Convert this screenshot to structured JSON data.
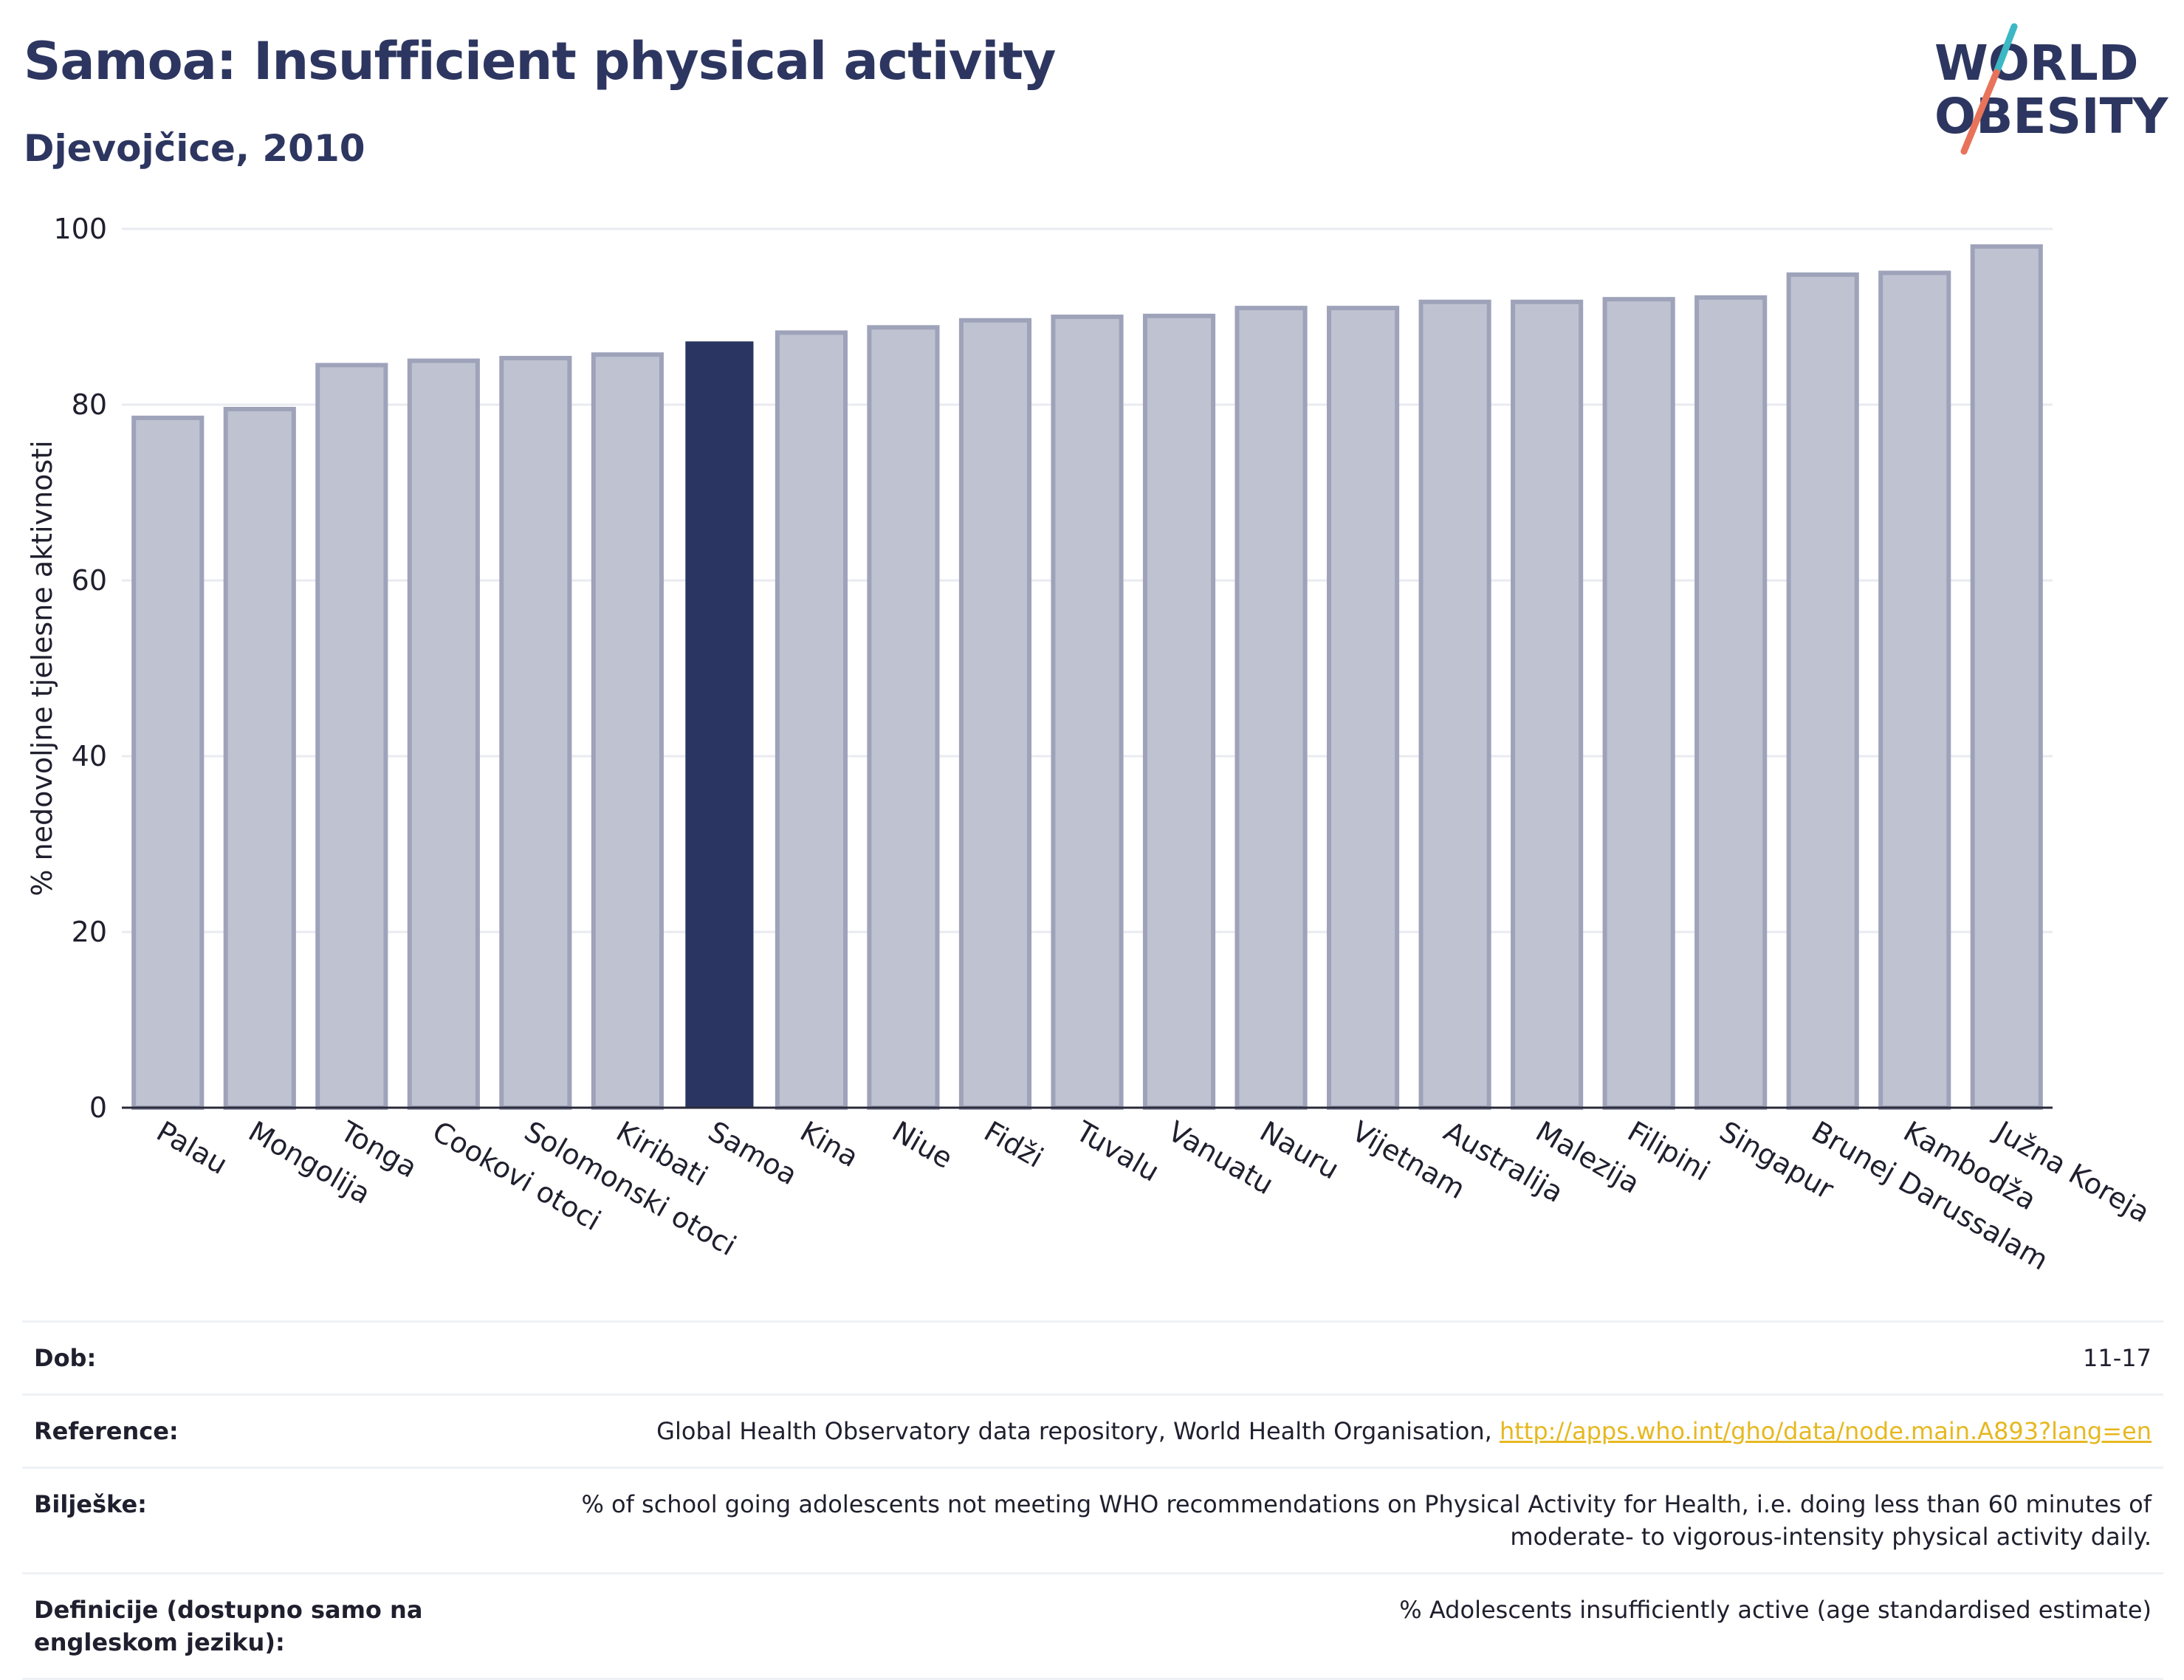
{
  "header": {
    "title": "Samoa: Insufficient physical activity",
    "subtitle": "Djevojčice, 2010"
  },
  "logo": {
    "line1": "WORLD",
    "line2": "OBESITY",
    "accent_teal": "#3bb8c4",
    "accent_coral": "#e8735a",
    "text_color": "#2d3660"
  },
  "chart_data": {
    "type": "bar",
    "title": "",
    "xlabel": "",
    "ylabel": "% nedovoljne tjelesne aktivnosti",
    "ylim": [
      0,
      100
    ],
    "yticks": [
      0,
      20,
      40,
      60,
      80,
      100
    ],
    "grid": true,
    "highlight": "Samoa",
    "colors": {
      "bar": "#bfc2d0",
      "bar_border": "#9ea3ba",
      "highlight": "#2b3561",
      "grid": "#e9ebf0",
      "axis": "#2a2a3a"
    },
    "categories": [
      "Palau",
      "Mongolija",
      "Tonga",
      "Cookovi otoci",
      "Solomonski otoci",
      "Kiribati",
      "Samoa",
      "Kina",
      "Niue",
      "Fidži",
      "Tuvalu",
      "Vanuatu",
      "Nauru",
      "Vijetnam",
      "Australija",
      "Malezija",
      "Filipini",
      "Singapur",
      "Brunej Darussalam",
      "Kambodža",
      "Južna Koreja"
    ],
    "values": [
      78.5,
      79.5,
      84.5,
      85.0,
      85.3,
      85.7,
      87.2,
      88.2,
      88.8,
      89.6,
      90.0,
      90.1,
      91.0,
      91.0,
      91.7,
      91.7,
      92.0,
      92.2,
      94.8,
      95.0,
      98.0
    ]
  },
  "meta": {
    "rows": [
      {
        "label": "Dob:",
        "value": "11-17"
      },
      {
        "label": "Reference:",
        "value": "Global Health Observatory data repository, World Health Organisation, ",
        "link": "http://apps.who.int/gho/data/node.main.A893?lang=en"
      },
      {
        "label": "Bilješke:",
        "value": "% of school going adolescents not meeting WHO recommendations on Physical Activity for Health, i.e. doing less than 60 minutes of moderate- to vigorous-intensity physical activity daily."
      },
      {
        "label": "Definicije (dostupno samo na engleskom jeziku):",
        "value": "% Adolescents insufficiently active (age standardised estimate)"
      }
    ]
  }
}
